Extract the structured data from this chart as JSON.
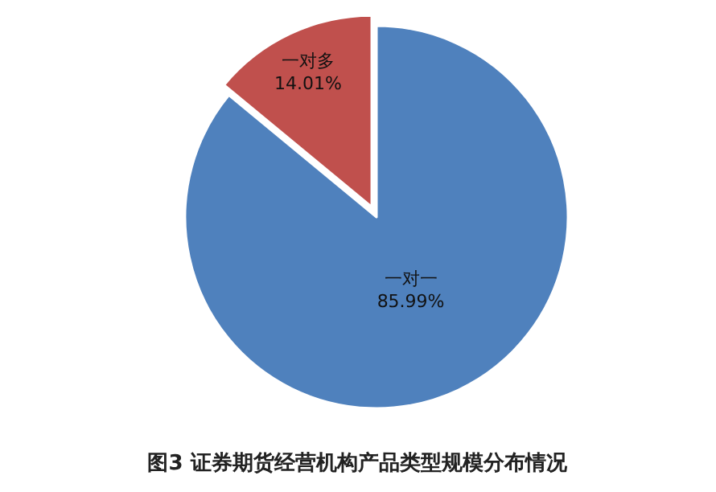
{
  "chart_data": {
    "type": "pie",
    "title": "图3 证券期货经营机构产品类型规模分布情况",
    "categories": [
      "一对一",
      "一对多"
    ],
    "values": [
      85.99,
      14.01
    ],
    "colors": [
      "#4f81bd",
      "#c0504d"
    ],
    "value_labels": [
      "85.99%",
      "14.01%"
    ]
  }
}
